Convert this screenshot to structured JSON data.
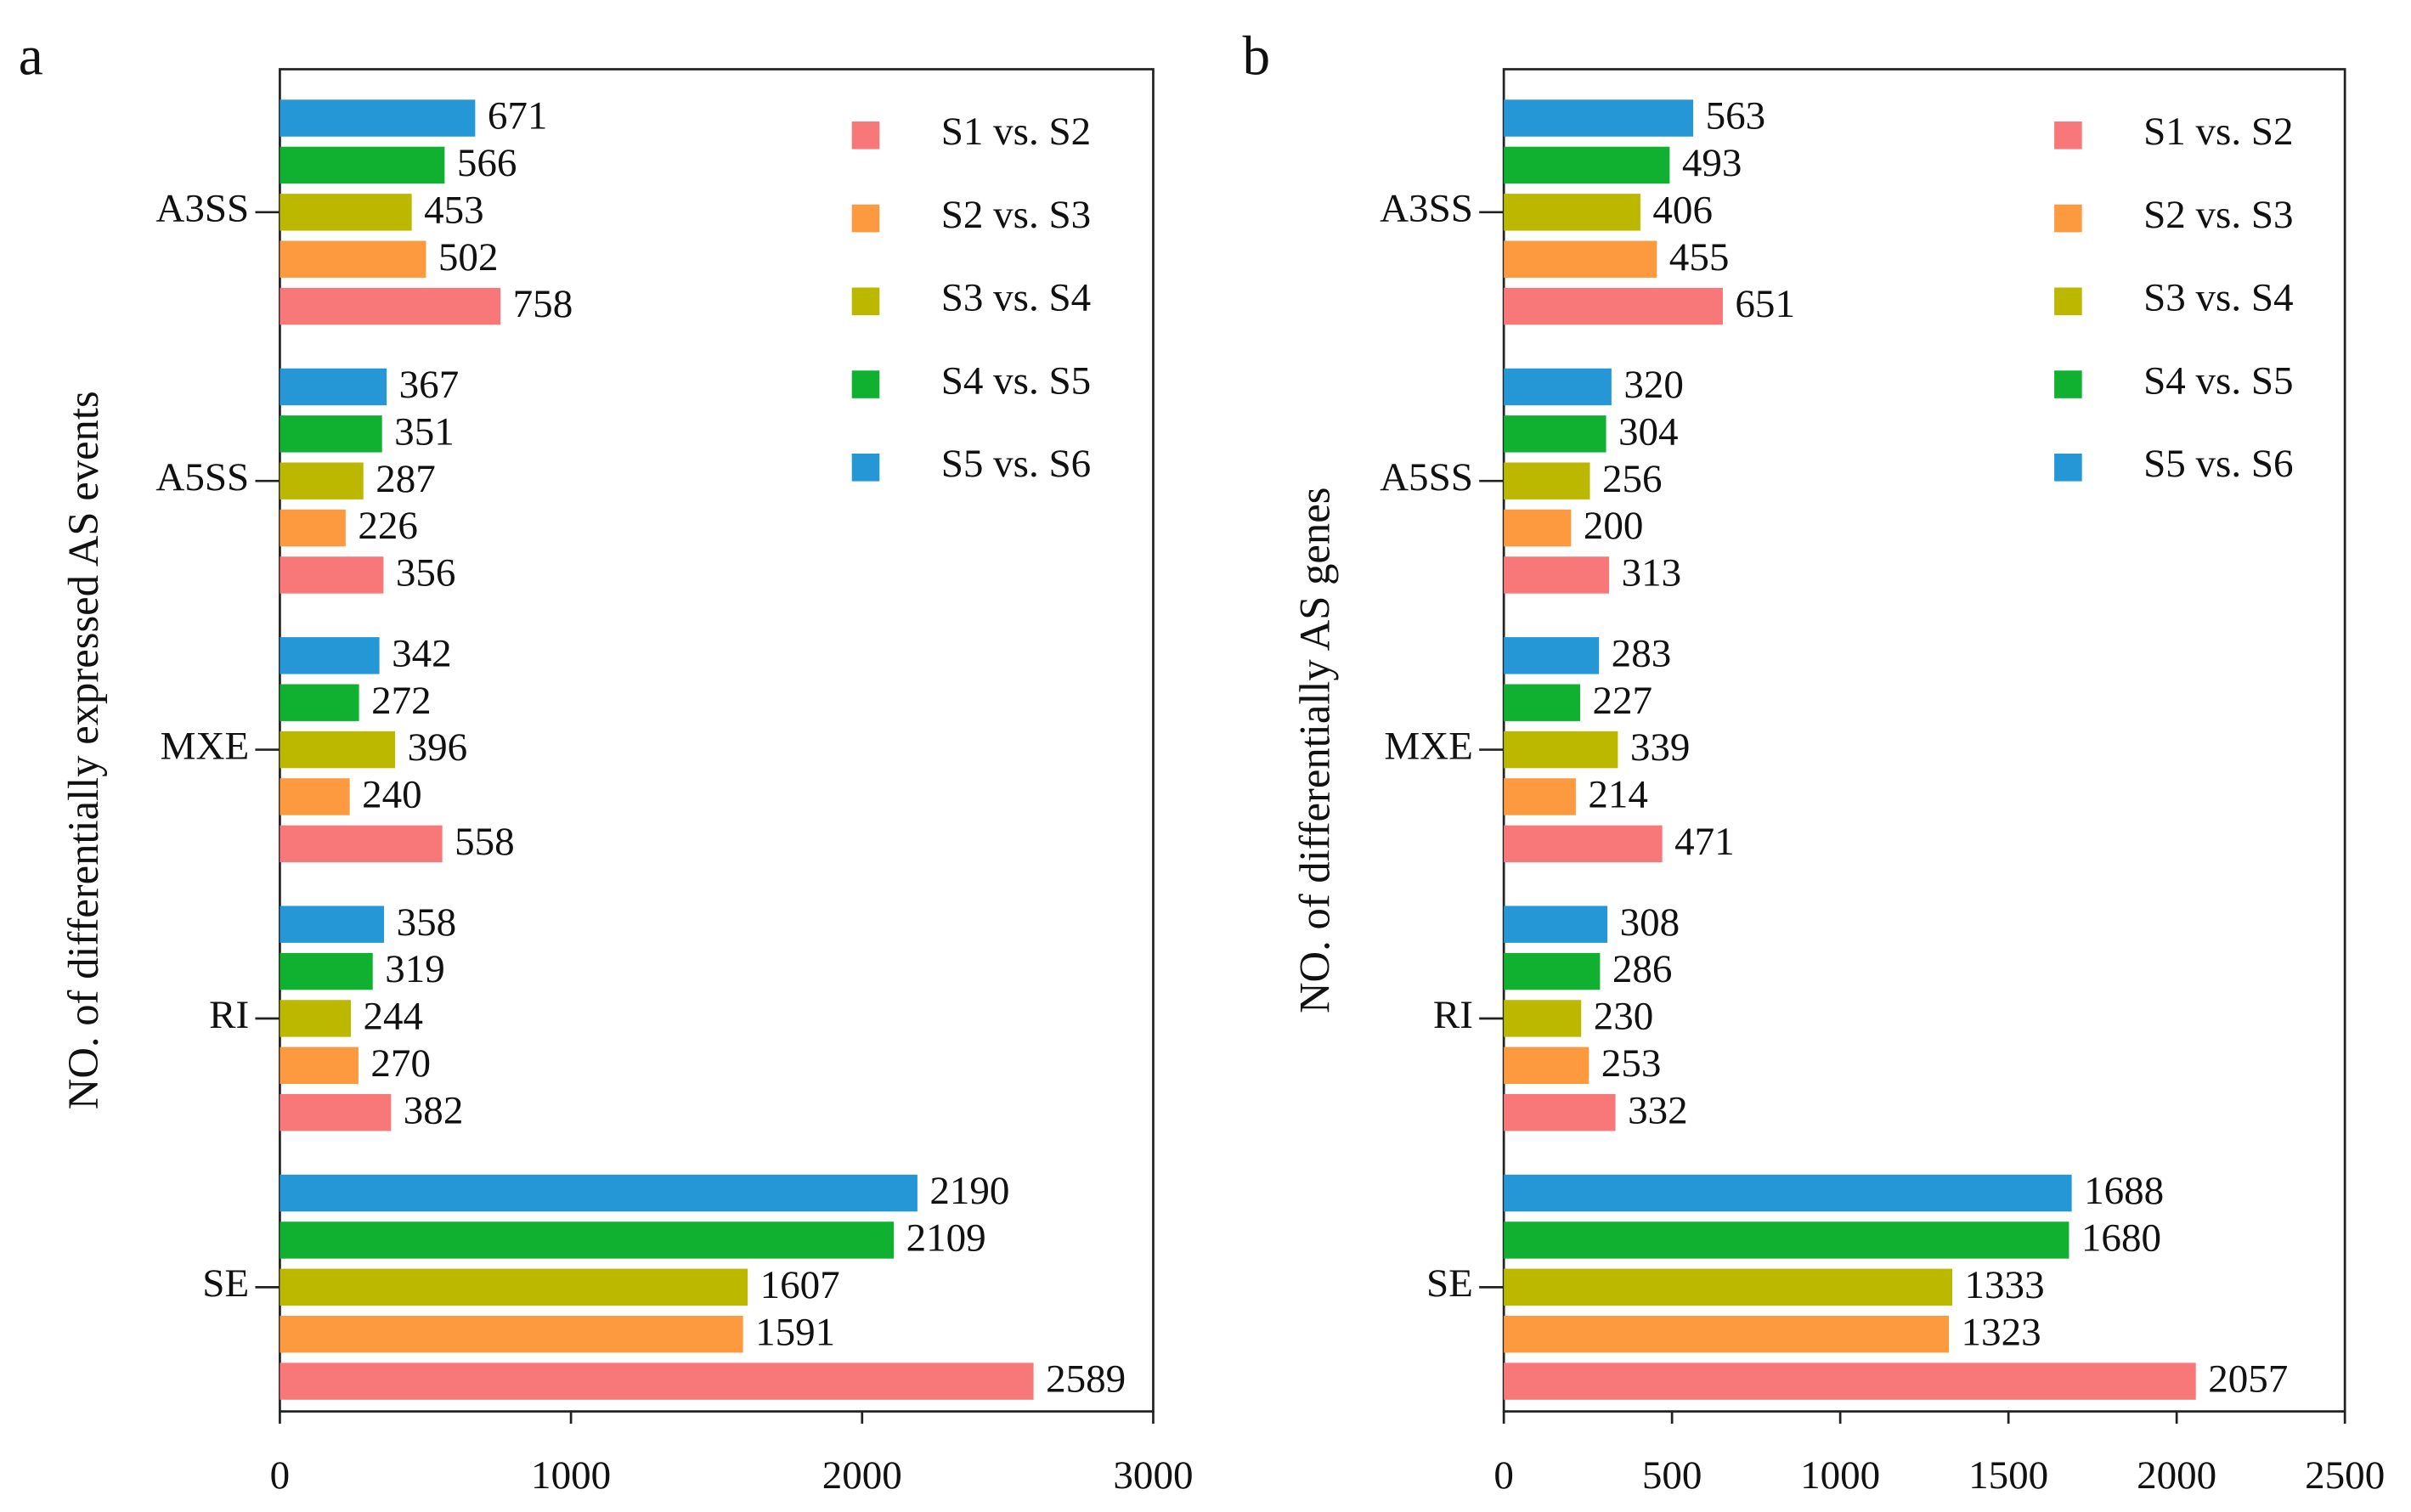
{
  "chart_data": [
    {
      "type": "barh",
      "label": "a",
      "ylabel": "NO. of differentially expressed AS events",
      "categories": [
        "A3SS",
        "A5SS",
        "MXE",
        "RI",
        "SE"
      ],
      "series": [
        {
          "name": "S1 vs. S2",
          "color": "#f8787a",
          "values": [
            758,
            356,
            558,
            382,
            2589
          ]
        },
        {
          "name": "S2 vs. S3",
          "color": "#fd9a3f",
          "values": [
            502,
            226,
            240,
            270,
            1591
          ]
        },
        {
          "name": "S3 vs. S4",
          "color": "#bcb800",
          "values": [
            453,
            287,
            396,
            244,
            1607
          ]
        },
        {
          "name": "S4 vs. S5",
          "color": "#10b130",
          "values": [
            566,
            351,
            272,
            319,
            2109
          ]
        },
        {
          "name": "S5 vs. S6",
          "color": "#2596d6",
          "values": [
            671,
            367,
            342,
            358,
            2190
          ]
        }
      ],
      "xlim": [
        0,
        3000
      ],
      "xticks": [
        0,
        1000,
        2000,
        3000
      ],
      "legend": "upper right"
    },
    {
      "type": "barh",
      "label": "b",
      "ylabel": "NO. of differentially AS genes",
      "categories": [
        "A3SS",
        "A5SS",
        "MXE",
        "RI",
        "SE"
      ],
      "series": [
        {
          "name": "S1 vs. S2",
          "color": "#f8787a",
          "values": [
            651,
            313,
            471,
            332,
            2057
          ]
        },
        {
          "name": "S2 vs. S3",
          "color": "#fd9a3f",
          "values": [
            455,
            200,
            214,
            253,
            1323
          ]
        },
        {
          "name": "S3 vs. S4",
          "color": "#bcb800",
          "values": [
            406,
            256,
            339,
            230,
            1333
          ]
        },
        {
          "name": "S4 vs. S5",
          "color": "#10b130",
          "values": [
            493,
            304,
            227,
            286,
            1680
          ]
        },
        {
          "name": "S5 vs. S6",
          "color": "#2596d6",
          "values": [
            563,
            320,
            283,
            308,
            1688
          ]
        }
      ],
      "xlim": [
        0,
        2500
      ],
      "xticks": [
        0,
        500,
        1000,
        1500,
        2000,
        2500
      ],
      "legend": "upper right"
    }
  ]
}
